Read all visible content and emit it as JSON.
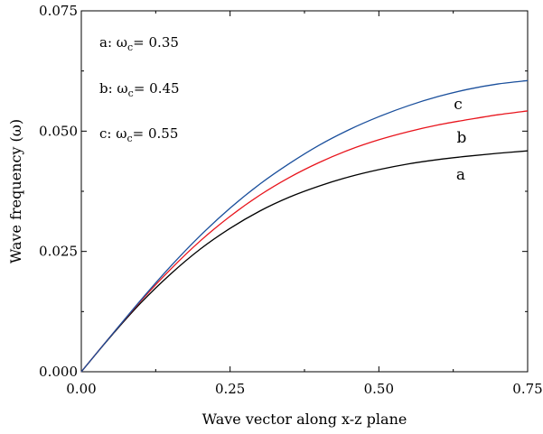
{
  "chart_data": {
    "type": "line",
    "title": "",
    "xlabel": "Wave vector along x-z plane",
    "ylabel": "Wave frequency (ω)",
    "xlim": [
      0,
      0.75
    ],
    "ylim": [
      0,
      0.075
    ],
    "x_ticks": [
      "0.00",
      "0.25",
      "0.50",
      "0.75"
    ],
    "y_ticks": [
      "0.000",
      "0.025",
      "0.050",
      "0.075"
    ],
    "grid": false,
    "legend_placement": "top-left",
    "legend": [
      {
        "key": "a",
        "text": "a: ω",
        "sub": "c",
        "value": "= 0.35"
      },
      {
        "key": "b",
        "text": "b: ω",
        "sub": "c",
        "value": "= 0.45"
      },
      {
        "key": "c",
        "text": "c: ω",
        "sub": "c",
        "value": "= 0.55"
      }
    ],
    "x": [
      0,
      0.05,
      0.1,
      0.15,
      0.2,
      0.25,
      0.3,
      0.35,
      0.4,
      0.45,
      0.5,
      0.55,
      0.6,
      0.65,
      0.7,
      0.75
    ],
    "series": [
      {
        "name": "a",
        "label": "a",
        "color": "#000000",
        "values": [
          0.0,
          0.0074,
          0.0143,
          0.0203,
          0.0255,
          0.0298,
          0.0334,
          0.0363,
          0.0386,
          0.0405,
          0.042,
          0.0432,
          0.0441,
          0.0448,
          0.0454,
          0.0459
        ]
      },
      {
        "name": "b",
        "label": "b",
        "color": "#e8141c",
        "values": [
          0.0,
          0.0075,
          0.0147,
          0.0213,
          0.0272,
          0.0323,
          0.0367,
          0.0404,
          0.0435,
          0.0461,
          0.0482,
          0.0499,
          0.0513,
          0.0524,
          0.0534,
          0.0542
        ]
      },
      {
        "name": "c",
        "label": "c",
        "color": "#1a4f9c",
        "values": [
          0.0,
          0.0075,
          0.0149,
          0.0219,
          0.0283,
          0.034,
          0.039,
          0.0433,
          0.0471,
          0.0503,
          0.053,
          0.0553,
          0.0572,
          0.0587,
          0.0598,
          0.0605
        ]
      }
    ]
  }
}
